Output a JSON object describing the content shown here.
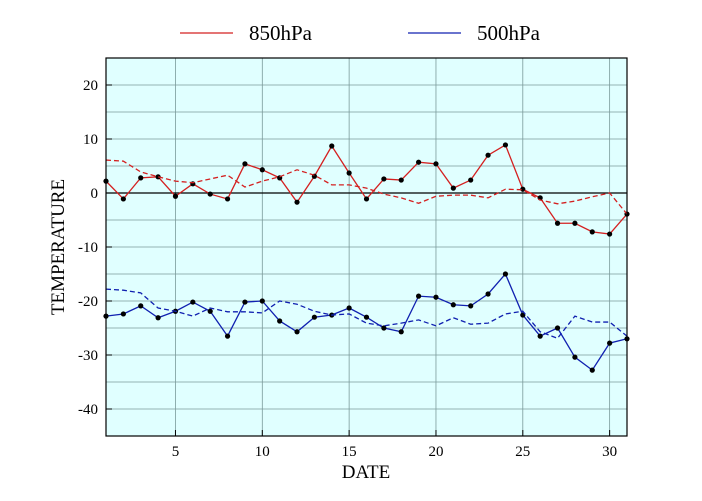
{
  "chart_data": {
    "type": "line",
    "x_label": "DATE",
    "y_label": "TEMPERATURE",
    "x": [
      1,
      2,
      3,
      4,
      5,
      6,
      7,
      8,
      9,
      10,
      11,
      12,
      13,
      14,
      15,
      16,
      17,
      18,
      19,
      20,
      21,
      22,
      23,
      24,
      25,
      26,
      27,
      28,
      29,
      30,
      31
    ],
    "xlim": [
      1,
      31
    ],
    "xticks": [
      5,
      10,
      15,
      20,
      25,
      30
    ],
    "ylim": [
      -45,
      25
    ],
    "yticks": [
      -40,
      -30,
      -20,
      -10,
      0,
      10,
      20
    ],
    "ygrid": [
      -40,
      -35,
      -30,
      -25,
      -20,
      -15,
      -10,
      -5,
      0,
      5,
      10,
      15,
      20
    ],
    "zero_line": 0,
    "background": "#e0ffff",
    "grid": true,
    "series": [
      {
        "name": "850hPa",
        "color": "#d42020",
        "style": "solid",
        "markers": true,
        "values": [
          2.2,
          -1.1,
          2.8,
          3.0,
          -0.6,
          1.7,
          -0.2,
          -1.1,
          5.4,
          4.3,
          2.8,
          -1.7,
          3.1,
          8.7,
          3.7,
          -1.1,
          2.6,
          2.4,
          5.7,
          5.4,
          0.9,
          2.4,
          7.0,
          8.9,
          0.7,
          -0.9,
          -5.6,
          -5.6,
          -7.2,
          -7.6,
          -3.9
        ]
      },
      {
        "name": "500hPa",
        "color": "#1020b0",
        "style": "solid",
        "markers": true,
        "values": [
          -22.8,
          -22.4,
          -20.9,
          -23.1,
          -21.9,
          -20.2,
          -21.9,
          -26.5,
          -20.2,
          -20.0,
          -23.7,
          -25.7,
          -23.0,
          -22.6,
          -21.3,
          -23.0,
          -25.0,
          -25.7,
          -19.1,
          -19.3,
          -20.7,
          -20.9,
          -18.7,
          -15.0,
          -22.6,
          -26.5,
          -25.0,
          -30.4,
          -32.8,
          -27.8,
          -27.0
        ]
      },
      {
        "color": "#d42020",
        "style": "dashed",
        "markers": false,
        "values": [
          6.1,
          5.9,
          3.9,
          3.0,
          2.2,
          1.9,
          2.6,
          3.3,
          1.1,
          2.2,
          3.0,
          4.3,
          3.3,
          1.5,
          1.5,
          0.9,
          -0.2,
          -0.9,
          -1.9,
          -0.6,
          -0.4,
          -0.4,
          -0.9,
          0.7,
          0.6,
          -1.3,
          -2.0,
          -1.5,
          -0.7,
          0.0,
          -3.9
        ]
      },
      {
        "color": "#1020b0",
        "style": "dashed",
        "markers": false,
        "values": [
          -17.8,
          -18.0,
          -18.5,
          -21.3,
          -21.9,
          -22.8,
          -21.3,
          -22.0,
          -22.0,
          -22.2,
          -20.0,
          -20.6,
          -21.9,
          -22.6,
          -22.4,
          -24.1,
          -24.6,
          -24.1,
          -23.5,
          -24.6,
          -23.1,
          -24.3,
          -24.1,
          -22.4,
          -21.9,
          -25.7,
          -26.9,
          -22.8,
          -23.9,
          -23.9,
          -26.5
        ]
      }
    ]
  }
}
